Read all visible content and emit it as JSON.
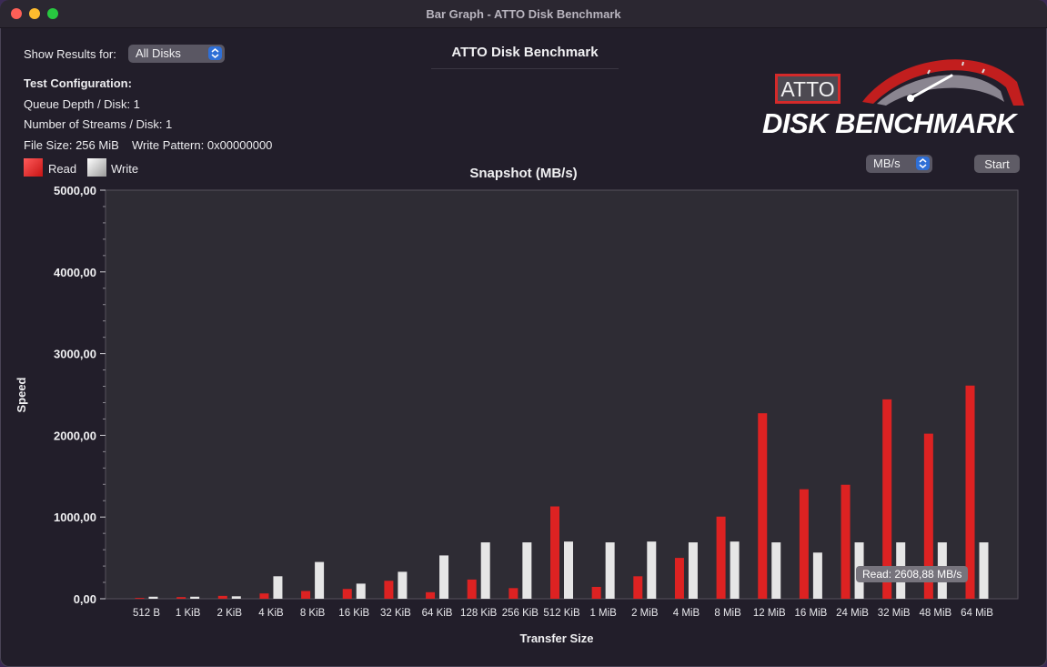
{
  "window": {
    "title": "Bar Graph - ATTO Disk Benchmark"
  },
  "controls": {
    "show_results_label": "Show Results for:",
    "show_results_value": "All Disks",
    "units_value": "MB/s",
    "start_label": "Start"
  },
  "header": {
    "app_title": "ATTO Disk Benchmark",
    "logo_atto": "ATTO",
    "logo_disk": "DISK BENCHMARK"
  },
  "config": {
    "heading": "Test Configuration:",
    "queue_depth": "Queue Depth / Disk: 1",
    "streams": "Number of Streams / Disk: 1",
    "file_size": "File Size: 256 MiB",
    "write_pattern": "Write Pattern: 0x00000000"
  },
  "legend": {
    "read": "Read",
    "write": "Write"
  },
  "tooltip": {
    "text": "Read: 2608,88 MB/s"
  },
  "colors": {
    "read": "#dd2222",
    "write": "#e6e6e6",
    "plot_bg": "#2e2c34",
    "accent": "#2f6fd6"
  },
  "chart_data": {
    "type": "bar",
    "title": "Snapshot (MB/s)",
    "xlabel": "Transfer Size",
    "ylabel": "Speed",
    "ylim": [
      0,
      5000
    ],
    "yticks": [
      "0,00",
      "1000,00",
      "2000,00",
      "3000,00",
      "4000,00",
      "5000,00"
    ],
    "grid": false,
    "categories": [
      "512 B",
      "1 KiB",
      "2 KiB",
      "4 KiB",
      "8 KiB",
      "16 KiB",
      "32 KiB",
      "64 KiB",
      "128 KiB",
      "256 KiB",
      "512 KiB",
      "1 MiB",
      "2 MiB",
      "4 MiB",
      "8 MiB",
      "12 MiB",
      "16 MiB",
      "24 MiB",
      "32 MiB",
      "48 MiB",
      "64 MiB"
    ],
    "series": [
      {
        "name": "Read",
        "values": [
          10,
          20,
          35,
          65,
          95,
          120,
          220,
          80,
          235,
          130,
          1130,
          145,
          275,
          500,
          1005,
          2270,
          1340,
          1395,
          2440,
          2020,
          2608.88
        ]
      },
      {
        "name": "Write",
        "values": [
          25,
          25,
          30,
          275,
          450,
          185,
          330,
          530,
          690,
          690,
          700,
          690,
          700,
          690,
          700,
          690,
          565,
          690,
          690,
          690,
          690
        ]
      }
    ]
  }
}
